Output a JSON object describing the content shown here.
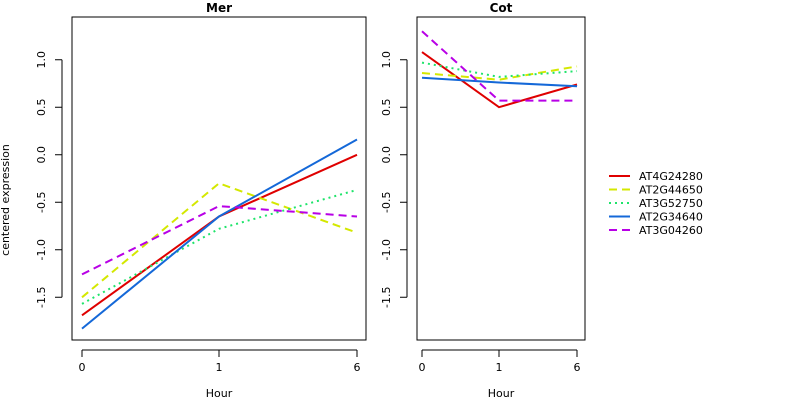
{
  "chart_data": {
    "type": "line",
    "shared_ylabel": "centered expression",
    "series_styles": [
      {
        "name": "AT4G24280",
        "color": "#df0000",
        "dash": "solid"
      },
      {
        "name": "AT2G44650",
        "color": "#d4e800",
        "dash": "dashed"
      },
      {
        "name": "AT3G52750",
        "color": "#1ee46a",
        "dash": "dotted"
      },
      {
        "name": "AT2G34640",
        "color": "#1468d8",
        "dash": "solid"
      },
      {
        "name": "AT3G04260",
        "color": "#b800e6",
        "dash": "dashed"
      }
    ],
    "legend": {
      "position": "right",
      "entries": [
        "AT4G24280",
        "AT2G44650",
        "AT3G52750",
        "AT2G34640",
        "AT3G04260"
      ]
    },
    "panels": [
      {
        "title": "Mer",
        "xlabel": "Hour",
        "ylabel": "centered expression",
        "x_categories": [
          "0",
          "1",
          "6"
        ],
        "ylim": [
          -1.95,
          1.45
        ],
        "yticks": [
          "1.0",
          "0.5",
          "0.0",
          "-0.5",
          "-1.0",
          "-1.5"
        ],
        "ytick_values": [
          1.0,
          0.5,
          0.0,
          -0.5,
          -1.0,
          -1.5
        ],
        "grid": false,
        "series": [
          {
            "name": "AT4G24280",
            "values": [
              -1.69,
              -0.65,
              0.0
            ]
          },
          {
            "name": "AT2G44650",
            "values": [
              -1.5,
              -0.3,
              -0.82
            ]
          },
          {
            "name": "AT3G52750",
            "values": [
              -1.57,
              -0.78,
              -0.37
            ]
          },
          {
            "name": "AT2G34640",
            "values": [
              -1.83,
              -0.65,
              0.16
            ]
          },
          {
            "name": "AT3G04260",
            "values": [
              -1.26,
              -0.54,
              -0.65
            ]
          }
        ]
      },
      {
        "title": "Cot",
        "xlabel": "Hour",
        "x_categories": [
          "0",
          "1",
          "6"
        ],
        "ylim": [
          -1.95,
          1.45
        ],
        "yticks": [
          "1.0",
          "0.5",
          "0.0",
          "-0.5",
          "-1.0",
          "-1.5"
        ],
        "ytick_values": [
          1.0,
          0.5,
          0.0,
          -0.5,
          -1.0,
          -1.5
        ],
        "grid": false,
        "series": [
          {
            "name": "AT4G24280",
            "values": [
              1.08,
              0.5,
              0.74
            ]
          },
          {
            "name": "AT2G44650",
            "values": [
              0.86,
              0.79,
              0.93
            ]
          },
          {
            "name": "AT3G52750",
            "values": [
              0.97,
              0.82,
              0.88
            ]
          },
          {
            "name": "AT2G34640",
            "values": [
              0.81,
              0.76,
              0.72
            ]
          },
          {
            "name": "AT3G04260",
            "values": [
              1.3,
              0.57,
              0.57
            ]
          }
        ]
      }
    ]
  }
}
